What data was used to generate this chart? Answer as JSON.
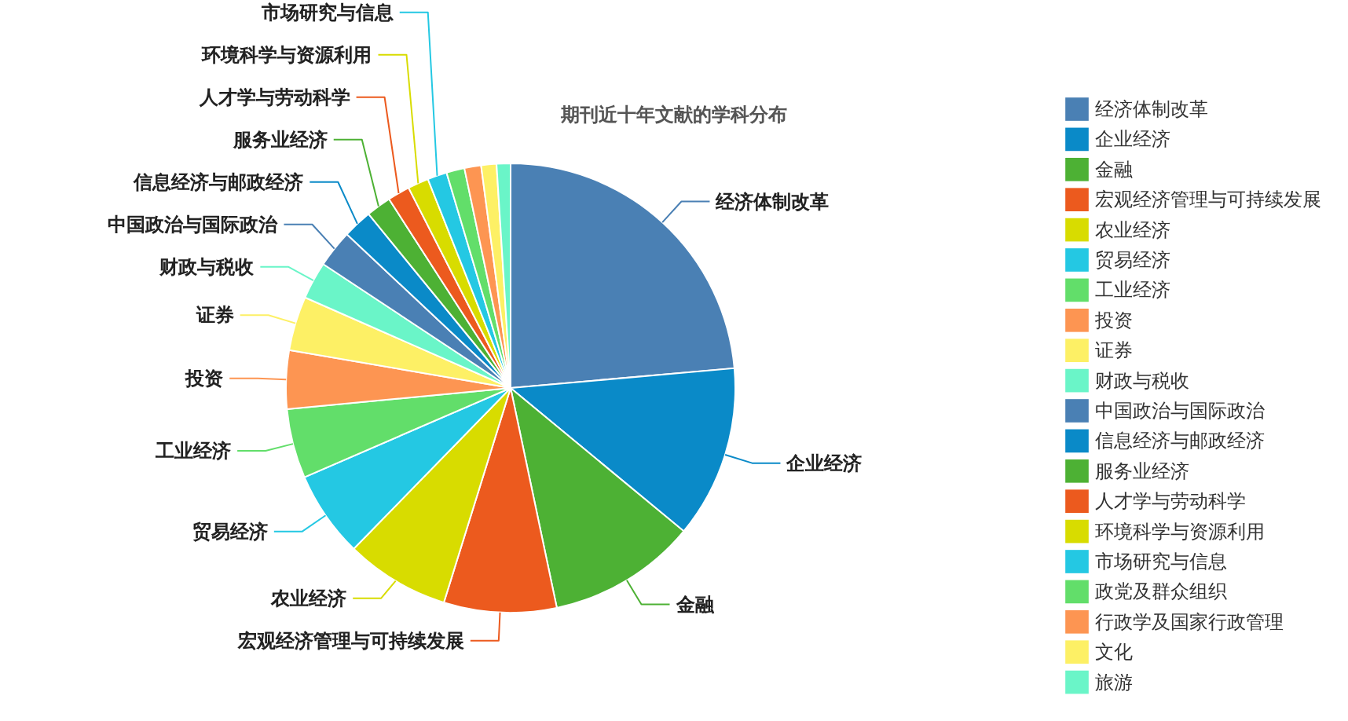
{
  "chart_data": {
    "type": "pie",
    "title": "期刊近十年文献的学科分布",
    "categories": [
      "经济体制改革",
      "企业经济",
      "金融",
      "宏观经济管理与可持续发展",
      "农业经济",
      "贸易经济",
      "工业经济",
      "投资",
      "证券",
      "财政与税收",
      "中国政治与国际政治",
      "信息经济与邮政经济",
      "服务业经济",
      "人才学与劳动科学",
      "环境科学与资源利用",
      "市场研究与信息",
      "政党及群众组织",
      "行政学及国家行政管理",
      "文化",
      "旅游"
    ],
    "values": [
      23.6,
      12.4,
      10.7,
      8.1,
      7.5,
      6.2,
      5.0,
      4.2,
      3.9,
      2.7,
      2.7,
      2.1,
      1.8,
      1.6,
      1.5,
      1.4,
      1.3,
      1.2,
      1.1,
      1.0
    ],
    "colors": [
      "#4a80b4",
      "#0a8ac8",
      "#4db134",
      "#ec5a1e",
      "#d8dc00",
      "#24c8e3",
      "#62de6a",
      "#fd9552",
      "#fdf065",
      "#6af5c8",
      "#4a80b4",
      "#0a8ac8",
      "#4db134",
      "#ec5a1e",
      "#d8dc00",
      "#24c8e3",
      "#62de6a",
      "#fd9552",
      "#fdf065",
      "#6af5c8"
    ],
    "legend": "right"
  }
}
